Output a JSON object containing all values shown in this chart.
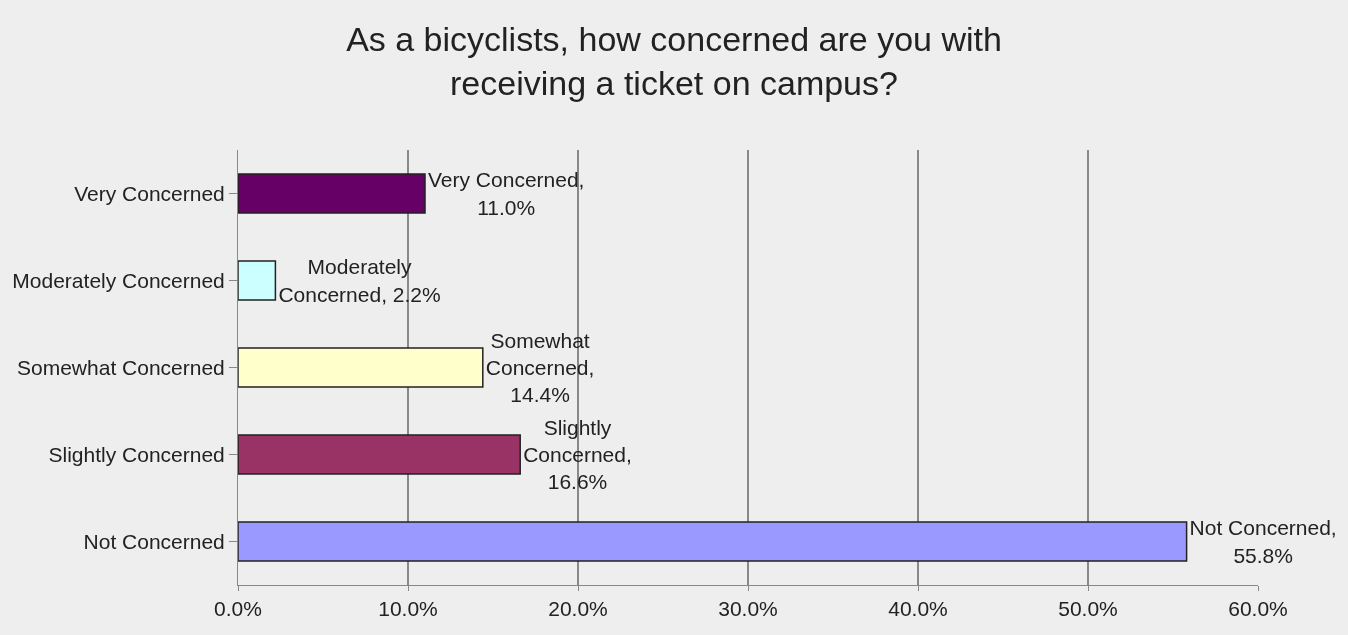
{
  "chart_data": {
    "type": "bar",
    "orientation": "horizontal",
    "title": "As a bicyclists, how concerned are you with\nreceiving a ticket on campus?",
    "categories": [
      "Very Concerned",
      "Moderately Concerned",
      "Somewhat Concerned",
      "Slightly Concerned",
      "Not Concerned"
    ],
    "values": [
      11.0,
      2.2,
      14.4,
      16.6,
      55.8
    ],
    "colors": [
      "#660066",
      "#ccffff",
      "#ffffcc",
      "#993366",
      "#9999ff"
    ],
    "value_labels": [
      "Very Concerned,\n11.0%",
      "Moderately\nConcerned, 2.2%",
      "Somewhat\nConcerned,\n14.4%",
      "Slightly\nConcerned,\n16.6%",
      "Not Concerned,\n55.8%"
    ],
    "xlim": [
      0,
      60
    ],
    "xticks": [
      {
        "value": 0,
        "label": "0.0%"
      },
      {
        "value": 10,
        "label": "10.0%"
      },
      {
        "value": 20,
        "label": "20.0%"
      },
      {
        "value": 30,
        "label": "30.0%"
      },
      {
        "value": 40,
        "label": "40.0%"
      },
      {
        "value": 50,
        "label": "50.0%"
      },
      {
        "value": 60,
        "label": "60.0%"
      }
    ],
    "grid": "x",
    "legend": false
  }
}
